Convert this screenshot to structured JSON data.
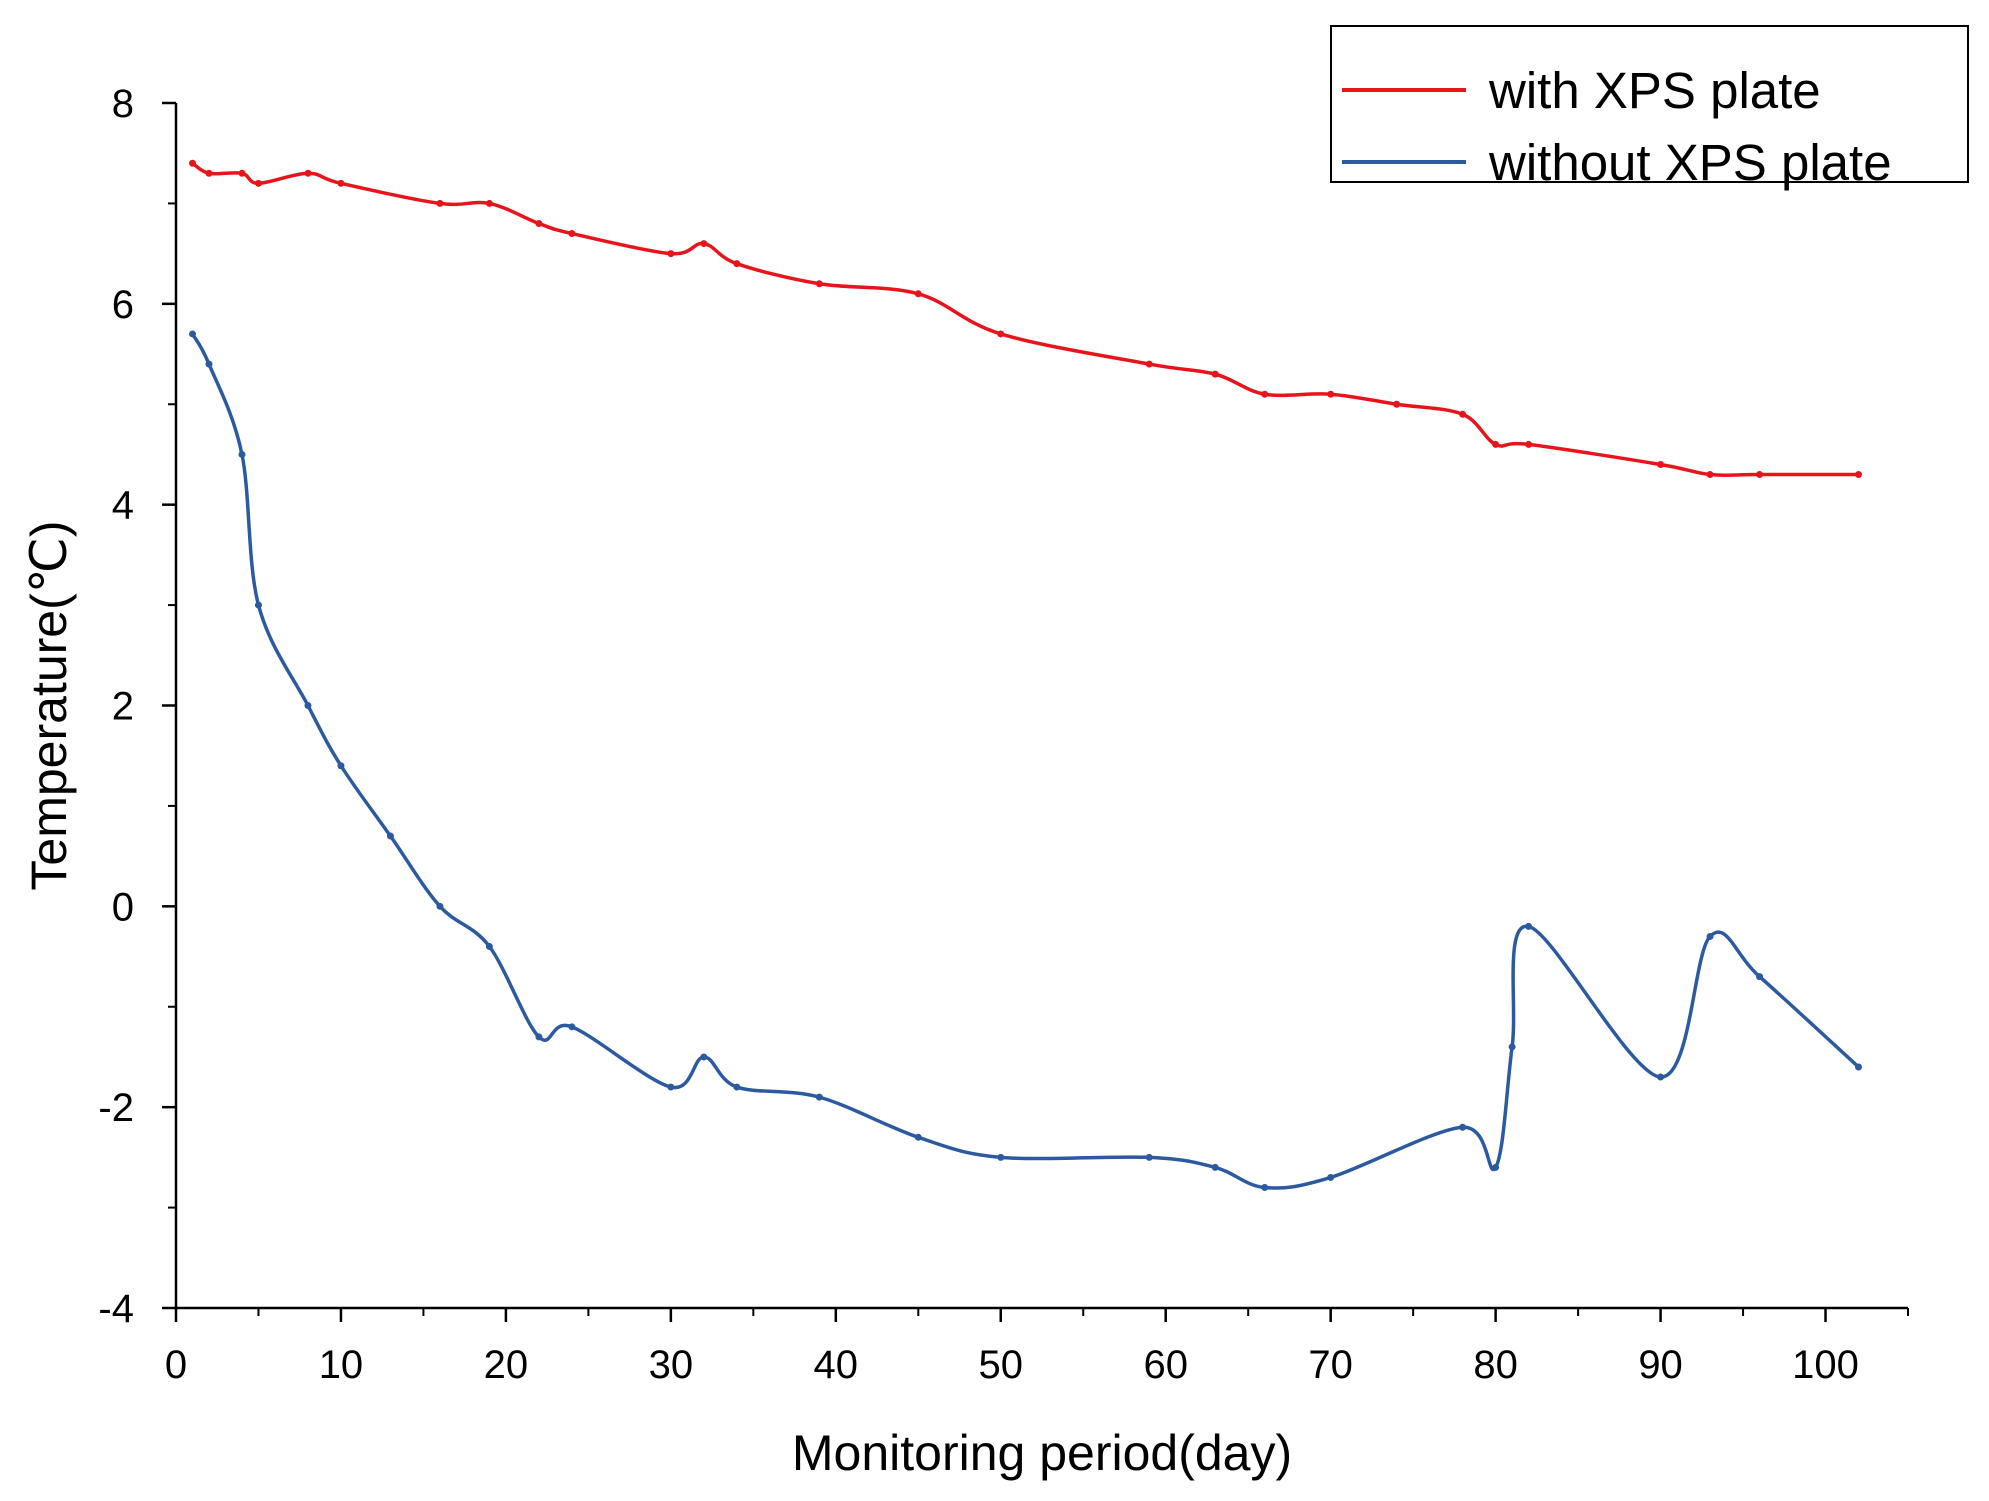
{
  "chart_data": {
    "type": "line",
    "title": "",
    "xlabel": "Monitoring period(day)",
    "ylabel": "Temperature(℃)",
    "xlim": [
      0,
      105
    ],
    "ylim": [
      -4,
      8
    ],
    "xticks": [
      0,
      10,
      20,
      30,
      40,
      50,
      60,
      70,
      80,
      90,
      100
    ],
    "yticks": [
      -4,
      -2,
      0,
      2,
      4,
      6,
      8
    ],
    "grid": false,
    "legend_position": "top-right",
    "series": [
      {
        "name": "with XPS plate",
        "color": "#e8141b",
        "x": [
          1,
          2,
          4,
          5,
          8,
          10,
          16,
          19,
          22,
          24,
          30,
          32,
          34,
          39,
          45,
          50,
          59,
          63,
          66,
          70,
          74,
          78,
          80,
          82,
          90,
          93,
          96,
          102
        ],
        "y": [
          7.4,
          7.3,
          7.3,
          7.2,
          7.3,
          7.2,
          7.0,
          7.0,
          6.8,
          6.7,
          6.5,
          6.6,
          6.4,
          6.2,
          6.1,
          5.7,
          5.4,
          5.3,
          5.1,
          5.1,
          5.0,
          4.9,
          4.6,
          4.6,
          4.4,
          4.3,
          4.3,
          4.3
        ]
      },
      {
        "name": "without XPS plate",
        "color": "#2c5aa0",
        "x": [
          1,
          2,
          4,
          5,
          8,
          10,
          13,
          16,
          19,
          22,
          24,
          30,
          32,
          34,
          39,
          45,
          50,
          59,
          63,
          66,
          70,
          78,
          80,
          81,
          82,
          90,
          93,
          96,
          102
        ],
        "y": [
          5.7,
          5.4,
          4.5,
          3.0,
          2.0,
          1.4,
          0.7,
          0.0,
          -0.4,
          -1.3,
          -1.2,
          -1.8,
          -1.5,
          -1.8,
          -1.9,
          -2.3,
          -2.5,
          -2.5,
          -2.6,
          -2.8,
          -2.7,
          -2.2,
          -2.6,
          -1.4,
          -0.2,
          -1.7,
          -0.3,
          -0.7,
          -1.6
        ]
      }
    ]
  }
}
